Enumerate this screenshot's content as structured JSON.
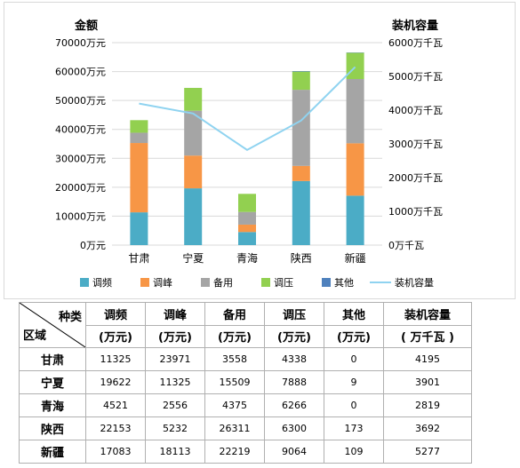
{
  "chart_data": {
    "type": "bar",
    "stacked": true,
    "left_axis_title": "金额",
    "right_axis_title": "装机容量",
    "categories": [
      "甘肃",
      "宁夏",
      "青海",
      "陕西",
      "新疆"
    ],
    "left_ticks": [
      "0万元",
      "10000万元",
      "20000万元",
      "30000万元",
      "40000万元",
      "50000万元",
      "60000万元",
      "70000万元"
    ],
    "right_ticks": [
      "0万千瓦",
      "1000万千瓦",
      "2000万千瓦",
      "3000万千瓦",
      "4000万千瓦",
      "5000万千瓦",
      "6000万千瓦"
    ],
    "ylim_left": [
      0,
      70000
    ],
    "ylim_right": [
      0,
      6000
    ],
    "series": [
      {
        "name": "调频",
        "color": "#4BACC6",
        "values": [
          11325,
          19622,
          4521,
          22153,
          17083
        ]
      },
      {
        "name": "调峰",
        "color": "#F79646",
        "values": [
          23971,
          11325,
          2556,
          5232,
          18113
        ]
      },
      {
        "name": "备用",
        "color": "#A5A5A5",
        "values": [
          3558,
          15509,
          4375,
          26311,
          22219
        ]
      },
      {
        "name": "调压",
        "color": "#92D050",
        "values": [
          4338,
          7888,
          6266,
          6300,
          9064
        ]
      },
      {
        "name": "其他",
        "color": "#4F81BD",
        "values": [
          0,
          9,
          0,
          173,
          109
        ]
      }
    ],
    "line_series": {
      "name": "装机容量",
      "color": "#8FD3F0",
      "axis": "right",
      "values": [
        4195,
        3901,
        2819,
        3692,
        5277
      ]
    },
    "legend_position": "bottom"
  },
  "table": {
    "corner_top": "种类",
    "corner_bottom": "区域",
    "headers": [
      {
        "line1": "调频",
        "line2": "(万元)"
      },
      {
        "line1": "调峰",
        "line2": "(万元)"
      },
      {
        "line1": "备用",
        "line2": "(万元)"
      },
      {
        "line1": "调压",
        "line2": "(万元)"
      },
      {
        "line1": "其他",
        "line2": "(万元)"
      },
      {
        "line1": "装机容量",
        "line2": "( 万千瓦 )"
      }
    ],
    "rows": [
      {
        "region": "甘肃",
        "cells": [
          "11325",
          "23971",
          "3558",
          "4338",
          "0",
          "4195"
        ]
      },
      {
        "region": "宁夏",
        "cells": [
          "19622",
          "11325",
          "15509",
          "7888",
          "9",
          "3901"
        ]
      },
      {
        "region": "青海",
        "cells": [
          "4521",
          "2556",
          "4375",
          "6266",
          "0",
          "2819"
        ]
      },
      {
        "region": "陕西",
        "cells": [
          "22153",
          "5232",
          "26311",
          "6300",
          "173",
          "3692"
        ]
      },
      {
        "region": "新疆",
        "cells": [
          "17083",
          "18113",
          "22219",
          "9064",
          "109",
          "5277"
        ]
      }
    ]
  }
}
